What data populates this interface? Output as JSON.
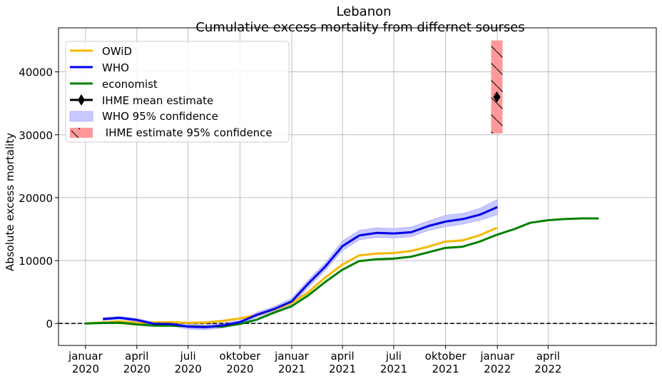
{
  "chart_data": {
    "type": "line",
    "title": "Lebanon",
    "subtitle": "Cumulative excess mortality from differnet sourses",
    "ylabel": "Absolute excess mortality",
    "xlabel": "",
    "ylim": [
      -3500,
      47000
    ],
    "xlim": [
      "2019-11-14",
      "2022-10-10"
    ],
    "grid": true,
    "legend_placement": "top-left",
    "y_ticks": [
      0,
      10000,
      20000,
      30000,
      40000
    ],
    "x_ticks": [
      {
        "date": "2020-01-01",
        "label1": "januar",
        "label2": "2020"
      },
      {
        "date": "2020-04-01",
        "label1": "april",
        "label2": "2020"
      },
      {
        "date": "2020-07-01",
        "label1": "juli",
        "label2": "2020"
      },
      {
        "date": "2020-10-01",
        "label1": "oktober",
        "label2": "2020"
      },
      {
        "date": "2021-01-01",
        "label1": "januar",
        "label2": "2021"
      },
      {
        "date": "2021-04-01",
        "label1": "april",
        "label2": "2021"
      },
      {
        "date": "2021-07-01",
        "label1": "juli",
        "label2": "2021"
      },
      {
        "date": "2021-10-01",
        "label1": "oktober",
        "label2": "2021"
      },
      {
        "date": "2022-01-01",
        "label1": "januar",
        "label2": "2022"
      },
      {
        "date": "2022-04-01",
        "label1": "april",
        "label2": "2022"
      }
    ],
    "baseline": {
      "y": 0,
      "style": "dashed",
      "color": "#000000"
    },
    "series": [
      {
        "name": "OWiD",
        "color": "#f5b800",
        "x": [
          "2020-01-01",
          "2020-01-31",
          "2020-03-01",
          "2020-03-31",
          "2020-04-30",
          "2020-05-31",
          "2020-06-30",
          "2020-07-31",
          "2020-08-31",
          "2020-09-30",
          "2020-10-31",
          "2020-11-30",
          "2020-12-31",
          "2021-01-31",
          "2021-02-28",
          "2021-03-31",
          "2021-04-30",
          "2021-05-31",
          "2021-06-30",
          "2021-07-31",
          "2021-08-31",
          "2021-09-30",
          "2021-10-31",
          "2021-11-30",
          "2021-12-31"
        ],
        "y": [
          0,
          150,
          350,
          100,
          150,
          200,
          100,
          150,
          400,
          800,
          1300,
          2200,
          3200,
          5000,
          7200,
          9300,
          10800,
          11100,
          11200,
          11500,
          12200,
          13000,
          13200,
          14000,
          15200
        ]
      },
      {
        "name": "WHO",
        "color": "#0000e6",
        "x": [
          "2020-02-01",
          "2020-03-01",
          "2020-04-01",
          "2020-05-01",
          "2020-06-01",
          "2020-07-01",
          "2020-08-01",
          "2020-09-01",
          "2020-10-01",
          "2020-11-01",
          "2020-12-01",
          "2021-01-01",
          "2021-02-01",
          "2021-03-01",
          "2021-04-01",
          "2021-05-01",
          "2021-06-01",
          "2021-07-01",
          "2021-08-01",
          "2021-09-01",
          "2021-10-01",
          "2021-11-01",
          "2021-12-01",
          "2022-01-01"
        ],
        "y": [
          700,
          900,
          550,
          -50,
          -100,
          -500,
          -600,
          -300,
          200,
          1400,
          2300,
          3500,
          6500,
          9000,
          12300,
          14000,
          14400,
          14300,
          14500,
          15500,
          16200,
          16600,
          17300,
          18500
        ],
        "ci_low": [
          500,
          700,
          300,
          -300,
          -400,
          -900,
          -1000,
          -700,
          -100,
          1000,
          1900,
          3000,
          5900,
          8400,
          11600,
          13300,
          13700,
          13600,
          13800,
          14800,
          15400,
          15800,
          16400,
          17300
        ],
        "ci_high": [
          900,
          1100,
          800,
          200,
          200,
          -100,
          -200,
          100,
          500,
          1800,
          2700,
          4000,
          7100,
          9600,
          13100,
          14800,
          15200,
          15100,
          15300,
          16300,
          17200,
          17500,
          18300,
          19700
        ]
      },
      {
        "name": "economist",
        "color": "#008000",
        "x": [
          "2020-01-01",
          "2020-01-31",
          "2020-03-01",
          "2020-03-31",
          "2020-04-30",
          "2020-05-31",
          "2020-06-30",
          "2020-07-31",
          "2020-08-31",
          "2020-09-30",
          "2020-10-31",
          "2020-11-30",
          "2020-12-31",
          "2021-01-31",
          "2021-02-28",
          "2021-03-31",
          "2021-04-30",
          "2021-05-31",
          "2021-06-30",
          "2021-07-31",
          "2021-08-31",
          "2021-09-30",
          "2021-10-31",
          "2021-11-30",
          "2021-12-31",
          "2022-01-31",
          "2022-02-28",
          "2022-03-31",
          "2022-04-30",
          "2022-05-31",
          "2022-06-30"
        ],
        "y": [
          0,
          80,
          120,
          -150,
          -350,
          -350,
          -450,
          -500,
          -500,
          -100,
          600,
          1700,
          2700,
          4500,
          6500,
          8500,
          9900,
          10200,
          10300,
          10600,
          11300,
          12000,
          12200,
          13000,
          14100,
          15000,
          16000,
          16400,
          16600,
          16700,
          16700
        ]
      }
    ],
    "ihme": {
      "mean_label": "IHME mean estimate",
      "ci_label": " IHME estimate 95% confidence",
      "date": "2021-12-31",
      "mean": 36000,
      "ci_low": 30200,
      "ci_high": 45000,
      "ci_color": "#ff9999"
    },
    "who_ci_label": "WHO 95% confidence",
    "who_ci_color": "#c8c8ff"
  }
}
